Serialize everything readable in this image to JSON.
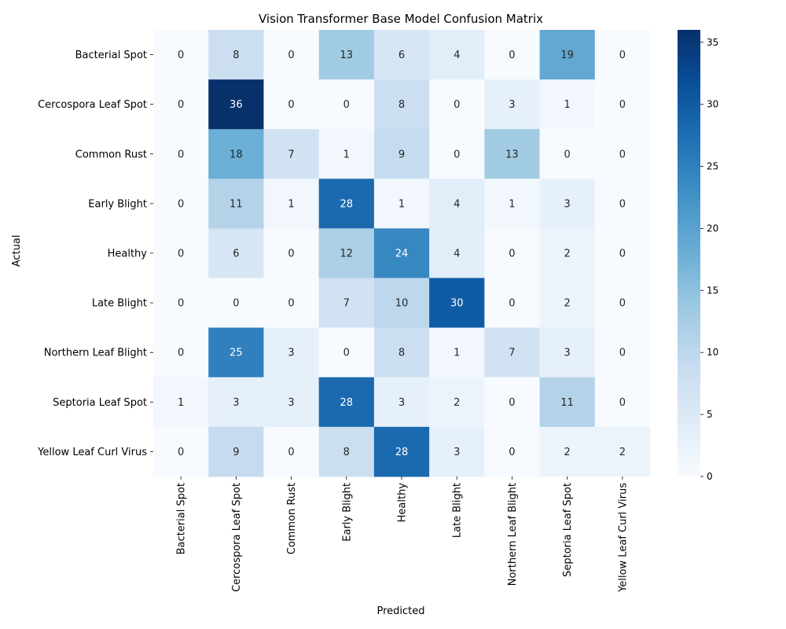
{
  "chart_data": {
    "type": "heatmap",
    "title": "Vision Transformer Base Model Confusion Matrix",
    "xlabel": "Predicted",
    "ylabel": "Actual",
    "labels": [
      "Bacterial Spot",
      "Cercospora Leaf Spot",
      "Common Rust",
      "Early Blight",
      "Healthy",
      "Late Blight",
      "Northern Leaf Blight",
      "Septoria Leaf Spot",
      "Yellow Leaf Curl Virus"
    ],
    "matrix": [
      [
        0,
        8,
        0,
        13,
        6,
        4,
        0,
        19,
        0
      ],
      [
        0,
        36,
        0,
        0,
        8,
        0,
        3,
        1,
        0
      ],
      [
        0,
        18,
        7,
        1,
        9,
        0,
        13,
        0,
        0
      ],
      [
        0,
        11,
        1,
        28,
        1,
        4,
        1,
        3,
        0
      ],
      [
        0,
        6,
        0,
        12,
        24,
        4,
        0,
        2,
        0
      ],
      [
        0,
        0,
        0,
        7,
        10,
        30,
        0,
        2,
        0
      ],
      [
        0,
        25,
        3,
        0,
        8,
        1,
        7,
        3,
        0
      ],
      [
        1,
        3,
        3,
        28,
        3,
        2,
        0,
        11,
        0
      ],
      [
        0,
        9,
        0,
        8,
        28,
        3,
        0,
        2,
        2
      ]
    ],
    "colormap": "Blues",
    "vmin": 0,
    "vmax": 36,
    "colorbar_ticks": [
      0,
      5,
      10,
      15,
      20,
      25,
      30,
      35
    ],
    "annotations": true
  }
}
